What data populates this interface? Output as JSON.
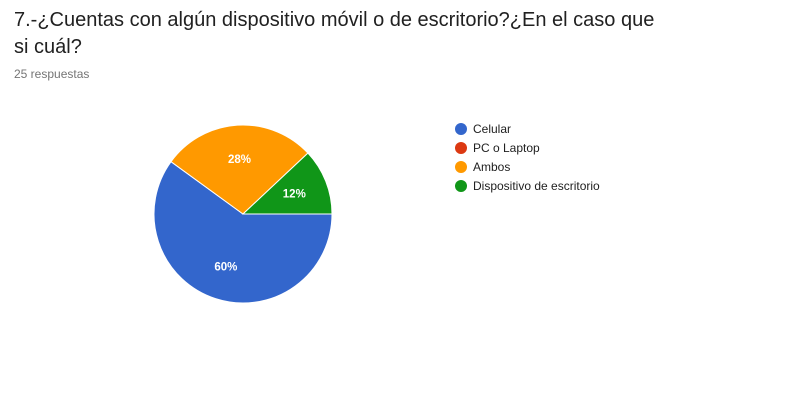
{
  "question": {
    "title": "7.-¿Cuentas con algún dispositivo móvil o de escritorio?¿En el caso que si cuál?",
    "responses": "25 respuestas"
  },
  "chart_data": {
    "type": "pie",
    "labels": [
      "Celular",
      "PC o Laptop",
      "Ambos",
      "Dispositivo de escritorio"
    ],
    "values": [
      60,
      0,
      28,
      12
    ],
    "slice_labels": [
      "60%",
      "",
      "28%",
      "12%"
    ],
    "colors": [
      "#3366cc",
      "#dc3912",
      "#ff9900",
      "#109618"
    ],
    "legend_position": "right"
  }
}
